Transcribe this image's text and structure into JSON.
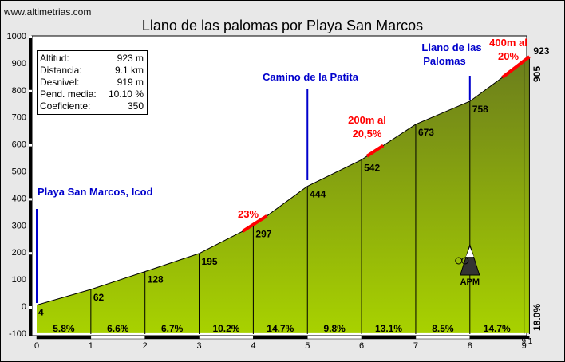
{
  "site": "www.altimetrias.com",
  "title": "Llano de las palomas por Playa San Marcos",
  "info": [
    {
      "label": "Altitud:",
      "value": "923 m"
    },
    {
      "label": "Distancia:",
      "value": "9.1 km"
    },
    {
      "label": "Desnivel:",
      "value": "919 m"
    },
    {
      "label": "Pend. media:",
      "value": "10.10 %"
    },
    {
      "label": "Coeficiente:",
      "value": "350"
    }
  ],
  "colors": {
    "fill_top": "#6b7d1c",
    "fill_bottom": "#a8d200",
    "background": "#e8e8e8",
    "label_blue": "#0000cc",
    "label_red": "#ff0000"
  },
  "chart_data": {
    "type": "area",
    "title": "Llano de las palomas por Playa San Marcos",
    "xlabel": "",
    "ylabel": "",
    "xlim": [
      0,
      9.1
    ],
    "ylim": [
      -100,
      1000
    ],
    "x_ticks": [
      "0",
      "1",
      "2",
      "3",
      "4",
      "5",
      "6",
      "7",
      "8",
      "9"
    ],
    "y_ticks": [
      "-100",
      "0",
      "100",
      "200",
      "300",
      "400",
      "500",
      "600",
      "700",
      "800",
      "900",
      "1000"
    ],
    "end_x_label": "9.1",
    "points": [
      {
        "x": 0,
        "y": 4,
        "label": "4"
      },
      {
        "x": 1,
        "y": 62,
        "label": "62"
      },
      {
        "x": 2,
        "y": 128,
        "label": "128"
      },
      {
        "x": 3,
        "y": 195,
        "label": "195"
      },
      {
        "x": 4,
        "y": 297,
        "label": "297"
      },
      {
        "x": 5,
        "y": 444,
        "label": "444"
      },
      {
        "x": 6,
        "y": 542,
        "label": "542"
      },
      {
        "x": 7,
        "y": 673,
        "label": "673"
      },
      {
        "x": 8,
        "y": 758,
        "label": "758"
      },
      {
        "x": 9,
        "y": 905,
        "label": "905"
      },
      {
        "x": 9.1,
        "y": 923,
        "label": "923"
      }
    ],
    "segment_gradients": [
      "5.8%",
      "6.6%",
      "6.7%",
      "10.2%",
      "14.7%",
      "9.8%",
      "13.1%",
      "8.5%",
      "14.7%",
      "18.0%"
    ],
    "steep_sections": [
      {
        "x_start": 3.8,
        "x_end": 4.25,
        "label": "23%"
      },
      {
        "x_start": 6.1,
        "x_end": 6.4,
        "label": "200m al 20,5%"
      },
      {
        "x_start": 8.6,
        "x_end": 9.1,
        "label": "400m al 20%"
      }
    ],
    "annotations": [
      {
        "x": 0,
        "label": "Playa San Marcos, Icod"
      },
      {
        "x": 5,
        "label": "Camino de la Patita"
      },
      {
        "x": 8,
        "label": "Llano de las Palomas"
      }
    ],
    "marker": {
      "x": 8,
      "label": "APM"
    }
  }
}
